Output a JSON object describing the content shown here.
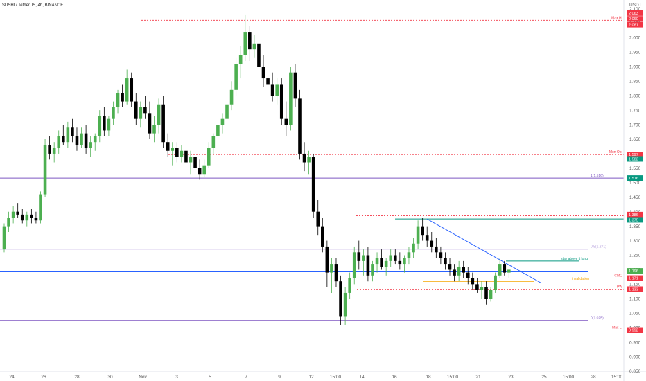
{
  "header": {
    "symbol_line": "SUSHI / TetherUS, 4h, BINANCE",
    "currency": "USDT"
  },
  "chart_data": {
    "type": "candlestick",
    "title": "SUSHI / TetherUS, 4h, BINANCE",
    "ylabel": "USDT",
    "ylim": [
      0.85,
      2.13
    ],
    "y_ticks": [
      "0.850",
      "0.900",
      "0.950",
      "1.000",
      "1.050",
      "1.100",
      "1.150",
      "1.200",
      "1.250",
      "1.300",
      "1.350",
      "1.400",
      "1.450",
      "1.500",
      "1.550",
      "1.600",
      "1.650",
      "1.700",
      "1.750",
      "1.800",
      "1.850",
      "1.900",
      "1.950",
      "2.000",
      "2.050",
      "2.100",
      "2.150"
    ],
    "x_ticks": [
      "24",
      "26",
      "28",
      "30",
      "Nov",
      "3",
      "5",
      "7",
      "9",
      "12",
      "15:00",
      "14",
      "16",
      "18",
      "15:00",
      "21",
      "23",
      "25",
      "15:00",
      "28",
      "15:00"
    ],
    "candles": [
      [
        1.27,
        1.36,
        1.26,
        1.35
      ],
      [
        1.35,
        1.4,
        1.33,
        1.38
      ],
      [
        1.38,
        1.42,
        1.36,
        1.4
      ],
      [
        1.4,
        1.43,
        1.38,
        1.39
      ],
      [
        1.39,
        1.41,
        1.36,
        1.37
      ],
      [
        1.37,
        1.4,
        1.35,
        1.39
      ],
      [
        1.39,
        1.41,
        1.36,
        1.38
      ],
      [
        1.38,
        1.4,
        1.36,
        1.37
      ],
      [
        1.37,
        1.47,
        1.36,
        1.46
      ],
      [
        1.46,
        1.65,
        1.45,
        1.63
      ],
      [
        1.63,
        1.66,
        1.58,
        1.6
      ],
      [
        1.6,
        1.64,
        1.57,
        1.62
      ],
      [
        1.62,
        1.68,
        1.6,
        1.66
      ],
      [
        1.66,
        1.7,
        1.63,
        1.64
      ],
      [
        1.64,
        1.71,
        1.62,
        1.69
      ],
      [
        1.69,
        1.72,
        1.64,
        1.66
      ],
      [
        1.66,
        1.69,
        1.61,
        1.63
      ],
      [
        1.63,
        1.69,
        1.62,
        1.67
      ],
      [
        1.67,
        1.7,
        1.6,
        1.62
      ],
      [
        1.62,
        1.66,
        1.59,
        1.64
      ],
      [
        1.64,
        1.67,
        1.61,
        1.66
      ],
      [
        1.66,
        1.75,
        1.64,
        1.73
      ],
      [
        1.73,
        1.76,
        1.66,
        1.68
      ],
      [
        1.68,
        1.73,
        1.66,
        1.72
      ],
      [
        1.72,
        1.78,
        1.7,
        1.76
      ],
      [
        1.76,
        1.82,
        1.74,
        1.81
      ],
      [
        1.81,
        1.84,
        1.76,
        1.78
      ],
      [
        1.78,
        1.89,
        1.77,
        1.86
      ],
      [
        1.86,
        1.88,
        1.76,
        1.78
      ],
      [
        1.78,
        1.81,
        1.7,
        1.72
      ],
      [
        1.72,
        1.78,
        1.69,
        1.76
      ],
      [
        1.76,
        1.8,
        1.72,
        1.74
      ],
      [
        1.74,
        1.78,
        1.65,
        1.67
      ],
      [
        1.67,
        1.73,
        1.64,
        1.7
      ],
      [
        1.7,
        1.79,
        1.67,
        1.77
      ],
      [
        1.77,
        1.8,
        1.62,
        1.64
      ],
      [
        1.64,
        1.67,
        1.59,
        1.61
      ],
      [
        1.61,
        1.64,
        1.56,
        1.62
      ],
      [
        1.62,
        1.64,
        1.57,
        1.59
      ],
      [
        1.59,
        1.63,
        1.57,
        1.61
      ],
      [
        1.61,
        1.63,
        1.55,
        1.57
      ],
      [
        1.57,
        1.61,
        1.53,
        1.59
      ],
      [
        1.59,
        1.61,
        1.53,
        1.55
      ],
      [
        1.55,
        1.58,
        1.51,
        1.53
      ],
      [
        1.53,
        1.58,
        1.52,
        1.56
      ],
      [
        1.56,
        1.64,
        1.55,
        1.62
      ],
      [
        1.62,
        1.67,
        1.6,
        1.66
      ],
      [
        1.66,
        1.72,
        1.64,
        1.7
      ],
      [
        1.7,
        1.74,
        1.67,
        1.72
      ],
      [
        1.72,
        1.79,
        1.7,
        1.77
      ],
      [
        1.77,
        1.85,
        1.75,
        1.82
      ],
      [
        1.82,
        1.93,
        1.8,
        1.91
      ],
      [
        1.91,
        1.97,
        1.86,
        1.94
      ],
      [
        1.94,
        2.08,
        1.92,
        2.02
      ],
      [
        2.02,
        2.04,
        1.92,
        1.96
      ],
      [
        1.96,
        2.01,
        1.93,
        1.98
      ],
      [
        1.98,
        2.0,
        1.88,
        1.9
      ],
      [
        1.9,
        1.94,
        1.83,
        1.86
      ],
      [
        1.86,
        1.88,
        1.81,
        1.84
      ],
      [
        1.84,
        1.88,
        1.78,
        1.8
      ],
      [
        1.8,
        1.86,
        1.77,
        1.84
      ],
      [
        1.84,
        1.86,
        1.7,
        1.72
      ],
      [
        1.72,
        1.78,
        1.66,
        1.7
      ],
      [
        1.7,
        1.9,
        1.68,
        1.88
      ],
      [
        1.88,
        1.91,
        1.76,
        1.79
      ],
      [
        1.79,
        1.82,
        1.58,
        1.6
      ],
      [
        1.6,
        1.64,
        1.54,
        1.57
      ],
      [
        1.57,
        1.61,
        1.53,
        1.59
      ],
      [
        1.59,
        1.6,
        1.38,
        1.4
      ],
      [
        1.4,
        1.44,
        1.32,
        1.35
      ],
      [
        1.35,
        1.38,
        1.26,
        1.28
      ],
      [
        1.28,
        1.3,
        1.14,
        1.19
      ],
      [
        1.19,
        1.24,
        1.12,
        1.22
      ],
      [
        1.22,
        1.24,
        1.14,
        1.16
      ],
      [
        1.16,
        1.18,
        1.01,
        1.04
      ],
      [
        1.04,
        1.14,
        1.01,
        1.12
      ],
      [
        1.12,
        1.19,
        1.1,
        1.17
      ],
      [
        1.17,
        1.28,
        1.15,
        1.26
      ],
      [
        1.26,
        1.3,
        1.2,
        1.23
      ],
      [
        1.23,
        1.27,
        1.18,
        1.25
      ],
      [
        1.25,
        1.28,
        1.16,
        1.18
      ],
      [
        1.18,
        1.23,
        1.16,
        1.22
      ],
      [
        1.22,
        1.26,
        1.19,
        1.24
      ],
      [
        1.24,
        1.27,
        1.2,
        1.21
      ],
      [
        1.21,
        1.24,
        1.18,
        1.23
      ],
      [
        1.23,
        1.27,
        1.21,
        1.25
      ],
      [
        1.25,
        1.27,
        1.22,
        1.23
      ],
      [
        1.23,
        1.26,
        1.2,
        1.22
      ],
      [
        1.22,
        1.25,
        1.19,
        1.24
      ],
      [
        1.24,
        1.28,
        1.22,
        1.26
      ],
      [
        1.26,
        1.31,
        1.24,
        1.29
      ],
      [
        1.29,
        1.37,
        1.27,
        1.35
      ],
      [
        1.35,
        1.38,
        1.3,
        1.32
      ],
      [
        1.32,
        1.35,
        1.28,
        1.3
      ],
      [
        1.3,
        1.33,
        1.26,
        1.28
      ],
      [
        1.28,
        1.31,
        1.24,
        1.26
      ],
      [
        1.26,
        1.28,
        1.22,
        1.24
      ],
      [
        1.24,
        1.26,
        1.2,
        1.22
      ],
      [
        1.22,
        1.24,
        1.18,
        1.2
      ],
      [
        1.2,
        1.22,
        1.16,
        1.18
      ],
      [
        1.18,
        1.23,
        1.16,
        1.21
      ],
      [
        1.21,
        1.23,
        1.17,
        1.19
      ],
      [
        1.19,
        1.21,
        1.15,
        1.17
      ],
      [
        1.17,
        1.19,
        1.13,
        1.15
      ],
      [
        1.15,
        1.17,
        1.12,
        1.13
      ],
      [
        1.13,
        1.16,
        1.1,
        1.14
      ],
      [
        1.14,
        1.16,
        1.08,
        1.1
      ],
      [
        1.1,
        1.14,
        1.09,
        1.13
      ],
      [
        1.13,
        1.19,
        1.12,
        1.18
      ],
      [
        1.18,
        1.24,
        1.17,
        1.22
      ],
      [
        1.22,
        1.23,
        1.18,
        1.19
      ],
      [
        1.19,
        1.2,
        1.17,
        1.2
      ]
    ],
    "levels": [
      {
        "id": "max-h",
        "price": 2.06,
        "color": "#f23645",
        "style": "dashed",
        "label": "Max H."
      },
      {
        "id": "r1",
        "price": 1.597,
        "color": "#f23645",
        "style": "dashed",
        "label": "Mon Op."
      },
      {
        "id": "green1",
        "price": 1.582,
        "color": "#089981",
        "style": "solid",
        "label": ""
      },
      {
        "id": "purple1",
        "price": 1.516,
        "color": "#7e57c2",
        "style": "solid",
        "label": "1(1.516)"
      },
      {
        "id": "r2",
        "price": 1.386,
        "color": "#f23645",
        "style": "dashed",
        "label": ""
      },
      {
        "id": "green2",
        "price": 1.375,
        "color": "#089981",
        "style": "solid",
        "label": "f"
      },
      {
        "id": "lav",
        "price": 1.271,
        "color": "#b39ddb",
        "style": "solid",
        "label": "0.5(1.271)"
      },
      {
        "id": "green3",
        "price": 1.23,
        "color": "#089981",
        "style": "solid",
        "label": "stay above it long"
      },
      {
        "id": "blue",
        "price": 1.195,
        "color": "#2962ff",
        "style": "solid",
        "label": ""
      },
      {
        "id": "cmo",
        "price": 1.171,
        "color": "#f23645",
        "style": "dashed",
        "label": "CMO"
      },
      {
        "id": "invalidation",
        "price": 1.16,
        "color": "#f6a500",
        "style": "solid",
        "label": "invalidation"
      },
      {
        "id": "pwl",
        "price": 1.133,
        "color": "#f23645",
        "style": "dashed",
        "label": "PW"
      },
      {
        "id": "purple2",
        "price": 1.025,
        "color": "#7e57c2",
        "style": "solid",
        "label": "0(1.025)"
      },
      {
        "id": "max-l",
        "price": 0.992,
        "color": "#f23645",
        "style": "dashed",
        "label": "Max L."
      }
    ],
    "trendline": {
      "from": [
        93,
        1.375
      ],
      "to": [
        118,
        1.155
      ],
      "color": "#2962ff"
    },
    "price_badges": [
      {
        "text": "2.063",
        "price": 2.085,
        "color": "#f23645"
      },
      {
        "text": "2.060",
        "price": 2.065,
        "color": "#f23645"
      },
      {
        "text": "2.061",
        "price": 2.045,
        "color": "#f23645"
      },
      {
        "text": "1.597",
        "price": 1.597,
        "color": "#f23645"
      },
      {
        "text": "1.582",
        "price": 1.582,
        "color": "#089981"
      },
      {
        "text": "1.516",
        "price": 1.516,
        "color": "#089981"
      },
      {
        "text": "1.386",
        "price": 1.39,
        "color": "#f23645"
      },
      {
        "text": "1.375",
        "price": 1.372,
        "color": "#089981"
      },
      {
        "text": "1.196",
        "price": 1.196,
        "color": "#4caf50"
      },
      {
        "text": "1.171",
        "price": 1.171,
        "color": "#f23645"
      },
      {
        "text": "1.133",
        "price": 1.133,
        "color": "#f23645"
      },
      {
        "text": "0.992",
        "price": 0.992,
        "color": "#f23645"
      }
    ]
  }
}
